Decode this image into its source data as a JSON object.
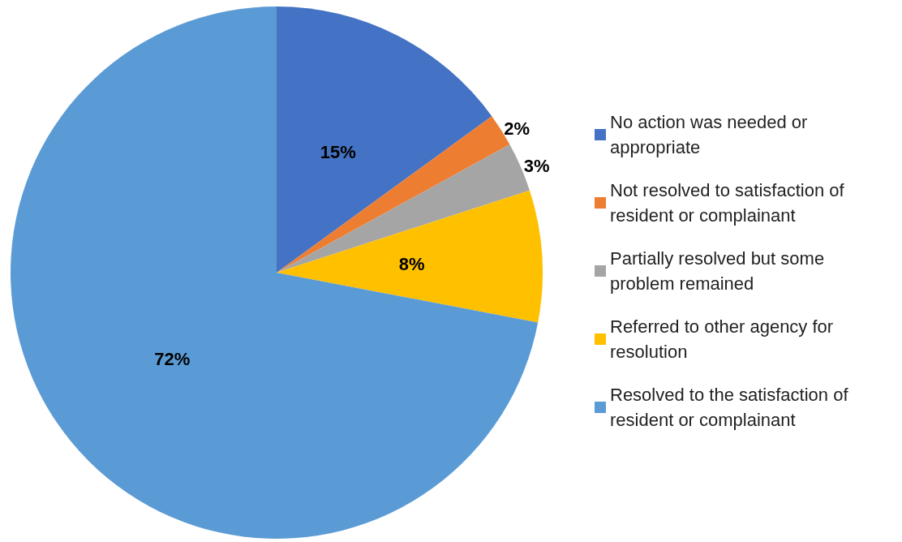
{
  "chart_data": {
    "type": "pie",
    "categories": [
      "No action was needed or appropriate",
      "Not resolved to satisfaction of resident or complainant",
      "Partially resolved but some problem remained",
      "Referred to other agency for resolution",
      "Resolved to the satisfaction of resident or complainant"
    ],
    "values": [
      15,
      2,
      3,
      8,
      72
    ],
    "colors": [
      "#4472c4",
      "#ed7d31",
      "#a5a5a5",
      "#ffc000",
      "#5b9bd5"
    ],
    "value_labels": [
      "15%",
      "2%",
      "3%",
      "8%",
      "72%"
    ],
    "legend": "right"
  }
}
